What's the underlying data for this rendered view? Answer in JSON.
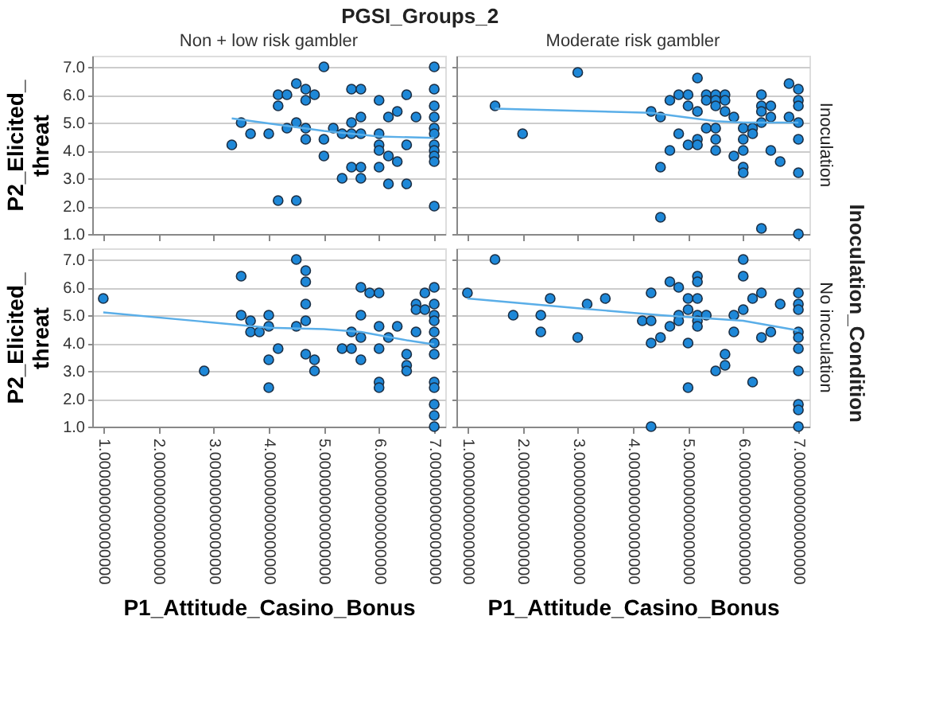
{
  "chart_data": [
    {
      "type": "scatter",
      "title": "Non + low risk gambler",
      "ylabel": "P2_Elicited_threat",
      "annotations": [
        "PGSI_Groups_2"
      ],
      "marker": "circle",
      "grid": "y",
      "tick_labels": "y",
      "xlim": [
        0.8,
        7.2
      ],
      "xticks": [
        1,
        2,
        3,
        4,
        5,
        6,
        7
      ],
      "ylim": [
        1,
        7.4
      ],
      "yticks": [
        {
          "value": 1,
          "label": "1.0"
        },
        {
          "value": 2,
          "label": "2.0"
        },
        {
          "value": 3,
          "label": "3.0"
        },
        {
          "value": 4,
          "label": "4.0"
        },
        {
          "value": 5,
          "label": "5.0"
        },
        {
          "value": 6,
          "label": "6.0"
        },
        {
          "value": 7,
          "label": "7.0"
        }
      ],
      "series": [
        {
          "color": "#1e88d8",
          "x": [
            3.33,
            3.5,
            3.67,
            4.0,
            4.17,
            4.17,
            4.17,
            4.33,
            4.33,
            4.5,
            4.5,
            4.5,
            4.67,
            4.67,
            4.67,
            4.67,
            4.83,
            5.0,
            5.0,
            5.0,
            5.17,
            5.33,
            5.33,
            5.5,
            5.5,
            5.5,
            5.5,
            5.67,
            5.67,
            5.67,
            5.67,
            5.67,
            6.0,
            6.0,
            6.0,
            6.0,
            6.0,
            6.17,
            6.17,
            6.17,
            6.33,
            6.33,
            6.5,
            6.5,
            6.5,
            6.67,
            7,
            7,
            7,
            7,
            7,
            7,
            7,
            7,
            7,
            7,
            7
          ],
          "values": [
            4.2,
            5.0,
            4.6,
            4.6,
            6.0,
            5.6,
            2.2,
            6.0,
            4.8,
            6.4,
            5.0,
            2.2,
            6.2,
            5.8,
            4.8,
            4.4,
            6.0,
            7.0,
            4.4,
            3.8,
            4.8,
            4.6,
            3.0,
            6.2,
            5.0,
            4.6,
            3.4,
            6.2,
            5.2,
            4.6,
            3.4,
            3.0,
            5.8,
            4.6,
            4.2,
            4.0,
            3.4,
            5.2,
            3.8,
            2.8,
            5.4,
            3.6,
            6.0,
            4.2,
            2.8,
            5.2,
            7.0,
            6.2,
            5.6,
            5.2,
            4.8,
            4.6,
            4.2,
            4.0,
            3.8,
            3.6,
            2.0
          ]
        },
        {
          "type": "line",
          "marker": "none",
          "color": "#5aaee8",
          "x": [
            3.33,
            5.0,
            6.0,
            7.0
          ],
          "values": [
            5.15,
            4.7,
            4.5,
            4.45
          ]
        }
      ]
    },
    {
      "type": "scatter",
      "title": "Moderate risk gambler",
      "annotations": [
        "Inoculation",
        "Inoculation_Condition"
      ],
      "marker": "circle",
      "grid": "y",
      "tick_labels": false,
      "xlim": [
        0.8,
        7.2
      ],
      "xticks": [
        1,
        2,
        3,
        4,
        5,
        6,
        7
      ],
      "ylim": [
        1,
        7.4
      ],
      "yticks": [
        1,
        2,
        3,
        4,
        5,
        6,
        7
      ],
      "series": [
        {
          "color": "#1e88d8",
          "x": [
            1.5,
            2.0,
            3.0,
            4.33,
            4.5,
            4.5,
            4.5,
            4.67,
            4.67,
            4.83,
            4.83,
            5.0,
            5.0,
            5.0,
            5.17,
            5.17,
            5.17,
            5.17,
            5.33,
            5.33,
            5.33,
            5.5,
            5.5,
            5.5,
            5.5,
            5.5,
            5.5,
            5.67,
            5.67,
            5.67,
            5.83,
            5.83,
            6.0,
            6.0,
            6.0,
            6.0,
            6.0,
            6.17,
            6.17,
            6.33,
            6.33,
            6.33,
            6.33,
            6.33,
            6.5,
            6.5,
            6.5,
            6.67,
            6.83,
            6.83,
            7,
            7,
            7,
            7,
            7,
            7,
            7
          ],
          "values": [
            5.6,
            4.6,
            6.8,
            5.4,
            5.2,
            3.4,
            1.6,
            5.8,
            4.0,
            6.0,
            4.6,
            6.0,
            5.6,
            4.2,
            6.6,
            5.4,
            4.4,
            4.2,
            6.0,
            5.8,
            4.8,
            6.0,
            5.8,
            5.6,
            4.8,
            4.4,
            4.0,
            6.0,
            5.8,
            5.4,
            5.2,
            3.8,
            4.8,
            4.4,
            4.0,
            3.4,
            3.2,
            4.8,
            4.6,
            6.0,
            5.6,
            5.4,
            5.0,
            1.2,
            5.6,
            5.2,
            4.0,
            3.6,
            6.4,
            5.2,
            6.2,
            5.8,
            5.6,
            5.0,
            4.4,
            3.2,
            1.0
          ]
        },
        {
          "type": "line",
          "marker": "none",
          "color": "#5aaee8",
          "x": [
            1.5,
            4.33,
            5.5,
            6.0,
            7.0
          ],
          "values": [
            5.5,
            5.35,
            5.05,
            5.0,
            5.0
          ]
        }
      ]
    },
    {
      "type": "scatter",
      "ylabel": "P2_Elicited_threat",
      "xlabel": "P1_Attitude_Casino_Bonus",
      "marker": "circle",
      "grid": "y",
      "xlim": [
        0.8,
        7.2
      ],
      "xticks": [
        {
          "value": 1,
          "label": "1.000000000000000"
        },
        {
          "value": 2,
          "label": "2.000000000000000"
        },
        {
          "value": 3,
          "label": "3.000000000000000"
        },
        {
          "value": 4,
          "label": "4.000000000000000"
        },
        {
          "value": 5,
          "label": "5.000000000000000"
        },
        {
          "value": 6,
          "label": "6.000000000000000"
        },
        {
          "value": 7,
          "label": "7.000000000000000"
        }
      ],
      "ylim": [
        1,
        7.4
      ],
      "yticks": [
        {
          "value": 1,
          "label": "1.0"
        },
        {
          "value": 2,
          "label": "2.0"
        },
        {
          "value": 3,
          "label": "3.0"
        },
        {
          "value": 4,
          "label": "4.0"
        },
        {
          "value": 5,
          "label": "5.0"
        },
        {
          "value": 6,
          "label": "6.0"
        },
        {
          "value": 7,
          "label": "7.0"
        }
      ],
      "series": [
        {
          "color": "#1e88d8",
          "x": [
            1.0,
            2.83,
            3.5,
            3.5,
            3.67,
            3.67,
            3.83,
            4.0,
            4.0,
            4.0,
            4.0,
            4.17,
            4.5,
            4.5,
            4.67,
            4.67,
            4.67,
            4.67,
            4.67,
            4.83,
            4.83,
            5.33,
            5.5,
            5.5,
            5.67,
            5.67,
            5.67,
            5.67,
            5.83,
            6.0,
            6.0,
            6.0,
            6.0,
            6.0,
            6.17,
            6.33,
            6.5,
            6.5,
            6.5,
            6.67,
            6.67,
            6.67,
            6.83,
            6.83,
            7,
            7,
            7,
            7,
            7,
            7,
            7,
            7,
            7,
            7,
            7,
            7
          ],
          "values": [
            5.6,
            3.0,
            6.4,
            5.0,
            4.8,
            4.4,
            4.4,
            5.0,
            4.6,
            3.4,
            2.4,
            3.8,
            7.0,
            4.6,
            6.6,
            6.2,
            5.4,
            4.8,
            3.6,
            3.4,
            3.0,
            3.8,
            4.4,
            3.8,
            6.0,
            5.0,
            4.2,
            3.4,
            5.8,
            5.8,
            4.6,
            3.8,
            2.6,
            2.4,
            4.2,
            4.6,
            3.6,
            3.2,
            3.0,
            5.4,
            5.2,
            4.4,
            5.8,
            5.2,
            6.0,
            5.4,
            5.0,
            4.8,
            4.4,
            4.0,
            3.6,
            2.6,
            2.4,
            1.8,
            1.4,
            1.0
          ]
        },
        {
          "type": "line",
          "marker": "none",
          "color": "#5aaee8",
          "x": [
            1.0,
            4.0,
            5.0,
            5.67,
            6.5,
            7.0
          ],
          "values": [
            5.1,
            4.55,
            4.5,
            4.4,
            4.1,
            3.95
          ]
        }
      ]
    },
    {
      "type": "scatter",
      "xlabel": "P1_Attitude_Casino_Bonus",
      "annotations": [
        "No inoculation"
      ],
      "marker": "circle",
      "grid": "y",
      "tick_labels": "x",
      "xlim": [
        0.8,
        7.2
      ],
      "xticks": [
        {
          "value": 1,
          "label": "1.000000000000000"
        },
        {
          "value": 2,
          "label": "2.000000000000000"
        },
        {
          "value": 3,
          "label": "3.000000000000000"
        },
        {
          "value": 4,
          "label": "4.000000000000000"
        },
        {
          "value": 5,
          "label": "5.000000000000000"
        },
        {
          "value": 6,
          "label": "6.000000000000000"
        },
        {
          "value": 7,
          "label": "7.000000000000000"
        }
      ],
      "ylim": [
        1,
        7.4
      ],
      "yticks": [
        1,
        2,
        3,
        4,
        5,
        6,
        7
      ],
      "series": [
        {
          "color": "#1e88d8",
          "x": [
            1.0,
            1.5,
            1.83,
            2.33,
            2.33,
            2.5,
            3.0,
            3.17,
            3.5,
            4.17,
            4.33,
            4.33,
            4.33,
            4.33,
            4.5,
            4.67,
            4.67,
            4.83,
            4.83,
            4.83,
            5.0,
            5.0,
            5.0,
            5.0,
            5.17,
            5.17,
            5.17,
            5.17,
            5.17,
            5.17,
            5.33,
            5.5,
            5.67,
            5.67,
            5.83,
            5.83,
            6.0,
            6.0,
            6.0,
            6.17,
            6.17,
            6.33,
            6.33,
            6.5,
            6.67,
            7,
            7,
            7,
            7,
            7,
            7,
            7,
            7,
            7,
            7
          ],
          "values": [
            5.8,
            7.0,
            5.0,
            5.0,
            4.4,
            5.6,
            4.2,
            5.4,
            5.6,
            4.8,
            5.8,
            4.8,
            4.0,
            1.0,
            4.2,
            4.6,
            6.2,
            6.0,
            5.0,
            4.8,
            5.6,
            5.2,
            4.0,
            2.4,
            6.4,
            6.2,
            5.6,
            5.0,
            4.8,
            4.6,
            5.0,
            3.0,
            3.2,
            3.6,
            5.0,
            4.4,
            7.0,
            6.4,
            5.2,
            5.6,
            2.6,
            5.8,
            4.2,
            4.4,
            5.4,
            5.8,
            5.4,
            5.2,
            4.4,
            4.2,
            3.8,
            3.0,
            1.8,
            1.6,
            1.0
          ]
        },
        {
          "type": "line",
          "marker": "none",
          "color": "#5aaee8",
          "x": [
            1.0,
            3.0,
            4.5,
            6.0,
            7.0
          ],
          "values": [
            5.6,
            5.25,
            5.0,
            4.8,
            4.45
          ]
        }
      ]
    }
  ]
}
